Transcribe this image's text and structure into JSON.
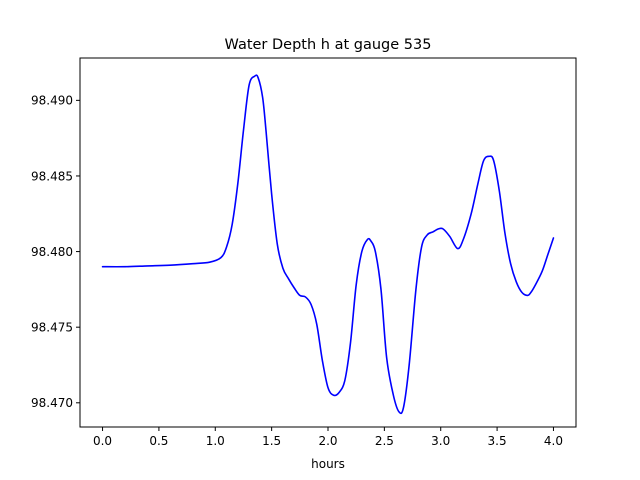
{
  "chart_data": {
    "type": "line",
    "title": "Water Depth h at gauge 535",
    "xlabel": "hours",
    "ylabel": "",
    "xlim": [
      -0.2,
      4.2
    ],
    "ylim": [
      98.4684,
      98.4928
    ],
    "xticks": [
      0.0,
      0.5,
      1.0,
      1.5,
      2.0,
      2.5,
      3.0,
      3.5,
      4.0
    ],
    "xtick_labels": [
      "0.0",
      "0.5",
      "1.0",
      "1.5",
      "2.0",
      "2.5",
      "3.0",
      "3.5",
      "4.0"
    ],
    "yticks": [
      98.47,
      98.475,
      98.48,
      98.485,
      98.49
    ],
    "ytick_labels": [
      "98.470",
      "98.475",
      "98.480",
      "98.485",
      "98.490"
    ],
    "grid": false,
    "series": [
      {
        "color": "#0000ff",
        "x": [
          0.0,
          0.2,
          0.4,
          0.6,
          0.8,
          0.95,
          1.05,
          1.1,
          1.15,
          1.2,
          1.25,
          1.3,
          1.35,
          1.38,
          1.42,
          1.45,
          1.5,
          1.55,
          1.6,
          1.65,
          1.7,
          1.75,
          1.8,
          1.85,
          1.9,
          1.95,
          2.0,
          2.05,
          2.1,
          2.15,
          2.2,
          2.25,
          2.3,
          2.35,
          2.38,
          2.42,
          2.47,
          2.52,
          2.58,
          2.63,
          2.67,
          2.72,
          2.78,
          2.83,
          2.88,
          2.93,
          2.98,
          3.02,
          3.08,
          3.15,
          3.2,
          3.27,
          3.33,
          3.38,
          3.43,
          3.47,
          3.52,
          3.57,
          3.62,
          3.67,
          3.72,
          3.77,
          3.8,
          3.84,
          3.9,
          3.95,
          4.0
        ],
        "values": [
          98.479,
          98.479,
          98.47905,
          98.4791,
          98.4792,
          98.4793,
          98.4796,
          98.4803,
          98.4818,
          98.4845,
          98.488,
          98.491,
          98.4916,
          98.4915,
          98.4902,
          98.488,
          98.4838,
          98.4805,
          98.4789,
          98.4782,
          98.4776,
          98.4771,
          98.477,
          98.4765,
          98.4752,
          98.4728,
          98.471,
          98.4705,
          98.4707,
          98.4715,
          98.474,
          98.4778,
          98.48,
          98.4808,
          98.4807,
          98.48,
          98.4775,
          98.473,
          98.4705,
          98.4694,
          98.4697,
          98.4725,
          98.4775,
          98.4803,
          98.4811,
          98.4813,
          98.4815,
          98.4815,
          98.481,
          98.4802,
          98.4808,
          98.4825,
          98.4845,
          98.486,
          98.4863,
          98.486,
          98.484,
          98.4812,
          98.4792,
          98.478,
          98.4773,
          98.4771,
          98.4773,
          98.4778,
          98.4787,
          98.4798,
          98.4809
        ]
      }
    ]
  }
}
